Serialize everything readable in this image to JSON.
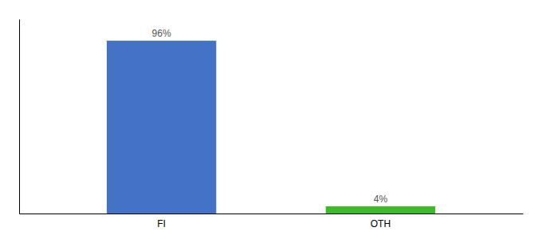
{
  "chart_data": {
    "type": "bar",
    "categories": [
      "FI",
      "OTH"
    ],
    "values": [
      96,
      4
    ],
    "colors": [
      "#4472C4",
      "#3CBB2A"
    ],
    "value_labels": [
      "96%",
      "4%"
    ],
    "data_labels": true,
    "ylim": [
      0,
      108
    ],
    "yticks": [],
    "tick_labels": "x",
    "grid": false
  }
}
